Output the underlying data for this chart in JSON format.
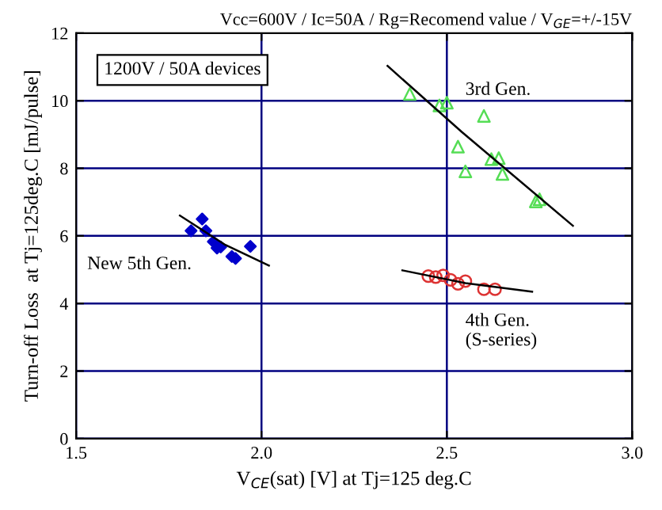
{
  "chart_data": {
    "type": "scatter",
    "subtitle": "Vcc=600V / Ic=50A / Rg=Recomend value / V$_{GE}$=+/-15V",
    "xlabel": "V$_{CE}$(sat) [V] at Tj=125 deg.C",
    "ylabel": "Turn-off Loss  at Tj=125deg.C [mJ/pulse]",
    "annotations": [
      "1200V / 50A devices"
    ],
    "xlim": [
      1.5,
      3.0
    ],
    "ylim": [
      0,
      12
    ],
    "xticks": [
      {
        "value": 1.5,
        "label": "1.5"
      },
      {
        "value": 2.0,
        "label": "2.0"
      },
      {
        "value": 2.5,
        "label": "2.5"
      },
      {
        "value": 3.0,
        "label": "3.0"
      }
    ],
    "yticks": [
      0,
      2,
      4,
      6,
      8,
      10,
      12
    ],
    "grid": true,
    "legend": false,
    "series": [
      {
        "name": "New 5th Gen.",
        "color": "#0000cc",
        "marker": "diamond",
        "x": [
          1.81,
          1.84,
          1.85,
          1.87,
          1.88,
          1.89,
          1.92,
          1.93,
          1.97
        ],
        "values": [
          6.15,
          6.5,
          6.15,
          5.83,
          5.64,
          5.67,
          5.39,
          5.33,
          5.69
        ]
      },
      {
        "name": "4th Gen.\n(S-series)",
        "color": "#dd3333",
        "marker": "circle",
        "x": [
          2.45,
          2.47,
          2.49,
          2.51,
          2.53,
          2.55,
          2.6,
          2.63
        ],
        "values": [
          4.81,
          4.78,
          4.83,
          4.7,
          4.58,
          4.66,
          4.42,
          4.42
        ]
      },
      {
        "name": "3rd Gen.",
        "color": "#55dd55",
        "marker": "triangle",
        "x": [
          2.4,
          2.48,
          2.5,
          2.6,
          2.53,
          2.62,
          2.64,
          2.55,
          2.65,
          2.75,
          2.74
        ],
        "values": [
          10.2,
          9.86,
          9.94,
          9.55,
          8.64,
          8.27,
          8.3,
          7.91,
          7.83,
          7.08,
          7.02
        ]
      },
      {
        "type": "line",
        "color": "#000000",
        "marker": "none",
        "x": [
          1.78,
          1.9,
          2.02
        ],
        "values": [
          6.6,
          5.75,
          5.12
        ]
      },
      {
        "type": "line",
        "color": "#000000",
        "marker": "none",
        "x": [
          2.38,
          2.55,
          2.73
        ],
        "values": [
          4.98,
          4.6,
          4.35
        ]
      },
      {
        "type": "line",
        "color": "#000000",
        "marker": "none",
        "x": [
          2.34,
          2.54,
          2.84
        ],
        "values": [
          11.03,
          9.08,
          6.3
        ]
      }
    ]
  }
}
